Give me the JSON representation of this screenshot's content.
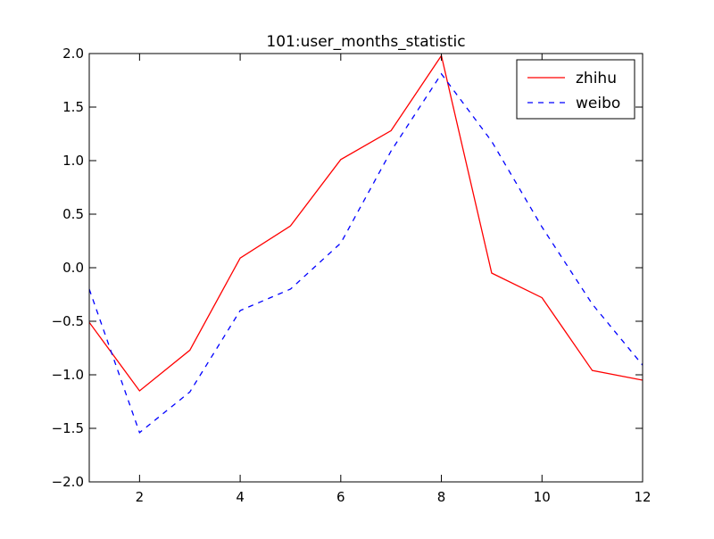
{
  "chart_data": {
    "type": "line",
    "title": "101:user_months_statistic",
    "xlabel": "",
    "ylabel": "",
    "xlim": [
      1,
      12
    ],
    "ylim": [
      -2.0,
      2.0
    ],
    "grid": false,
    "legend_position": "top-right",
    "x": [
      1,
      2,
      3,
      4,
      5,
      6,
      7,
      8,
      9,
      10,
      11,
      12
    ],
    "x_ticks": [
      2,
      4,
      6,
      8,
      10,
      12
    ],
    "x_tick_labels": [
      "2",
      "4",
      "6",
      "8",
      "10",
      "12"
    ],
    "y_ticks": [
      -2.0,
      -1.5,
      -1.0,
      -0.5,
      0.0,
      0.5,
      1.0,
      1.5,
      2.0
    ],
    "y_tick_labels": [
      "−2.0",
      "−1.5",
      "−1.0",
      "−0.5",
      "0.0",
      "0.5",
      "1.0",
      "1.5",
      "2.0"
    ],
    "series": [
      {
        "name": "zhihu",
        "color": "#ff0000",
        "line_style": "solid",
        "values": [
          -0.51,
          -1.15,
          -0.77,
          0.09,
          0.39,
          1.01,
          1.28,
          1.98,
          -0.05,
          -0.28,
          -0.96,
          -1.05
        ]
      },
      {
        "name": "weibo",
        "color": "#0000ff",
        "line_style": "dashed",
        "values": [
          -0.2,
          -1.54,
          -1.16,
          -0.4,
          -0.2,
          0.23,
          1.09,
          1.81,
          1.18,
          0.38,
          -0.34,
          -0.91
        ]
      }
    ]
  }
}
